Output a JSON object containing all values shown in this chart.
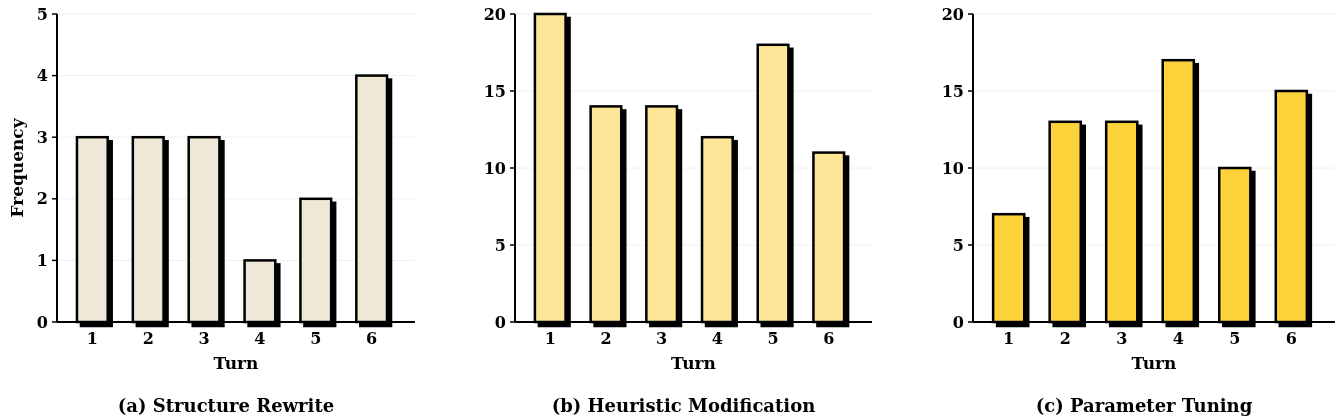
{
  "chart_data": [
    {
      "type": "bar",
      "title": "(a) Structure Rewrite",
      "xlabel": "Turn",
      "ylabel": "Frequency",
      "categories": [
        "1",
        "2",
        "3",
        "4",
        "5",
        "6"
      ],
      "values": [
        3,
        3,
        3,
        1,
        2,
        4
      ],
      "color": "#efe8d6",
      "ylim": [
        0,
        5
      ],
      "yticks": [
        0,
        1,
        2,
        3,
        4,
        5
      ],
      "grid": "y"
    },
    {
      "type": "bar",
      "title": "(b) Heuristic Modification",
      "xlabel": "Turn",
      "categories": [
        "1",
        "2",
        "3",
        "4",
        "5",
        "6"
      ],
      "values": [
        20,
        14,
        14,
        12,
        18,
        11
      ],
      "color": "#fee699",
      "ylim": [
        0,
        20
      ],
      "yticks": [
        0,
        5,
        10,
        15,
        20
      ],
      "grid": "y"
    },
    {
      "type": "bar",
      "title": "(c) Parameter Tuning",
      "xlabel": "Turn",
      "categories": [
        "1",
        "2",
        "3",
        "4",
        "5",
        "6"
      ],
      "values": [
        7,
        13,
        13,
        17,
        10,
        15
      ],
      "color": "#fed23a",
      "ylim": [
        0,
        20
      ],
      "yticks": [
        0,
        5,
        10,
        15,
        20
      ],
      "grid": "y"
    }
  ]
}
